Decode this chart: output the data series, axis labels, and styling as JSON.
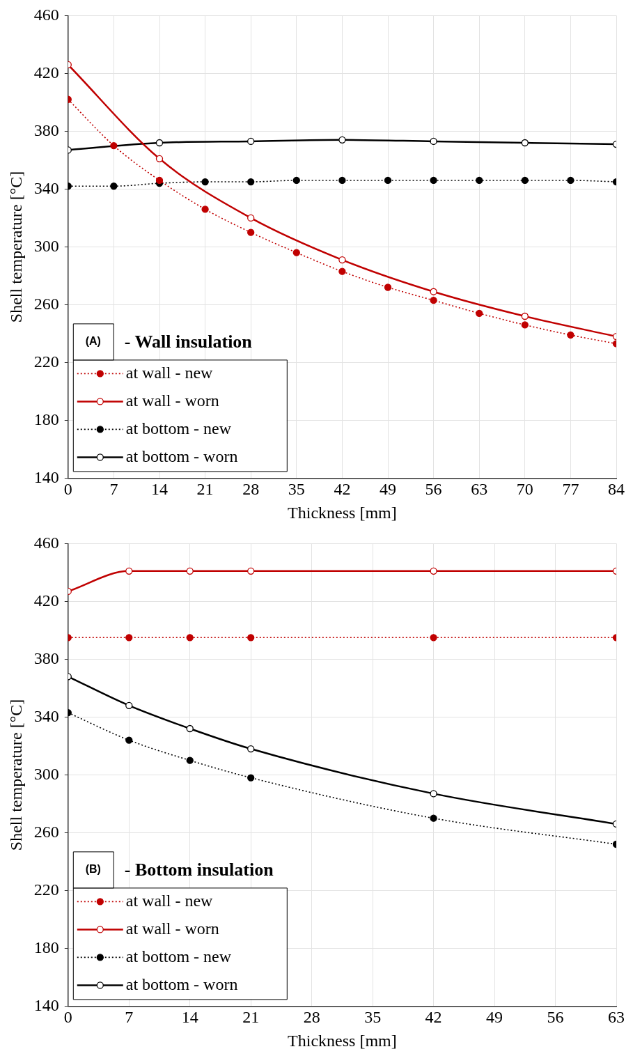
{
  "chart_data": [
    {
      "type": "line",
      "title": "(A)",
      "subtitle": "- Wall insulation",
      "xlabel": "Thickness [mm]",
      "ylabel": "Shell temperature [°C]",
      "xlim": [
        0,
        84
      ],
      "xticks": [
        0,
        7,
        14,
        21,
        28,
        35,
        42,
        49,
        56,
        63,
        70,
        77,
        84
      ],
      "ylim": [
        140,
        460
      ],
      "yticks": [
        140,
        180,
        220,
        260,
        300,
        340,
        380,
        420,
        460
      ],
      "grid": true,
      "legend": "bottom left",
      "marker": "circle",
      "series": [
        {
          "name": "at wall - new",
          "color": "#c00000",
          "line_style": "dotted",
          "x": [
            0,
            7,
            14,
            21,
            28,
            35,
            42,
            49,
            56,
            63,
            70,
            77,
            84
          ],
          "values": [
            402,
            370,
            346,
            326,
            310,
            296,
            283,
            272,
            263,
            254,
            246,
            239,
            233
          ]
        },
        {
          "name": "at wall - worn",
          "color": "#c00000",
          "line_style": "solid",
          "x": [
            0,
            14,
            28,
            42,
            56,
            70,
            84
          ],
          "values": [
            426,
            361,
            320,
            291,
            269,
            252,
            238
          ]
        },
        {
          "name": "at bottom - new",
          "color": "#000000",
          "line_style": "dotted",
          "x": [
            0,
            7,
            14,
            21,
            28,
            35,
            42,
            49,
            56,
            63,
            70,
            77,
            84
          ],
          "values": [
            342,
            342,
            344,
            345,
            345,
            346,
            346,
            346,
            346,
            346,
            346,
            346,
            345
          ]
        },
        {
          "name": "at bottom - worn",
          "color": "#000000",
          "line_style": "solid",
          "x": [
            0,
            14,
            28,
            42,
            56,
            70,
            84
          ],
          "values": [
            367,
            372,
            373,
            374,
            373,
            372,
            371
          ]
        }
      ]
    },
    {
      "type": "line",
      "title": "(B)",
      "subtitle": "- Bottom insulation",
      "xlabel": "Thickness [mm]",
      "ylabel": "Shell temperature [°C]",
      "xlim": [
        0,
        63
      ],
      "xticks": [
        0,
        7,
        14,
        21,
        28,
        35,
        42,
        49,
        56,
        63
      ],
      "ylim": [
        140,
        460
      ],
      "yticks": [
        140,
        180,
        220,
        260,
        300,
        340,
        380,
        420,
        460
      ],
      "grid": true,
      "legend": "bottom left",
      "marker": "circle",
      "series": [
        {
          "name": "at wall - new",
          "color": "#c00000",
          "line_style": "dotted",
          "x": [
            0,
            7,
            14,
            21,
            42,
            63
          ],
          "values": [
            395,
            395,
            395,
            395,
            395,
            395
          ]
        },
        {
          "name": "at wall - worn",
          "color": "#c00000",
          "line_style": "solid",
          "x": [
            0,
            7,
            14,
            21,
            42,
            63
          ],
          "values": [
            427,
            441,
            441,
            441,
            441,
            441
          ]
        },
        {
          "name": "at bottom - new",
          "color": "#000000",
          "line_style": "dotted",
          "x": [
            0,
            7,
            14,
            21,
            42,
            63
          ],
          "values": [
            343,
            324,
            310,
            298,
            270,
            252
          ]
        },
        {
          "name": "at bottom - worn",
          "color": "#000000",
          "line_style": "solid",
          "x": [
            0,
            7,
            14,
            21,
            42,
            63
          ],
          "values": [
            368,
            348,
            332,
            318,
            287,
            266
          ]
        }
      ]
    }
  ]
}
